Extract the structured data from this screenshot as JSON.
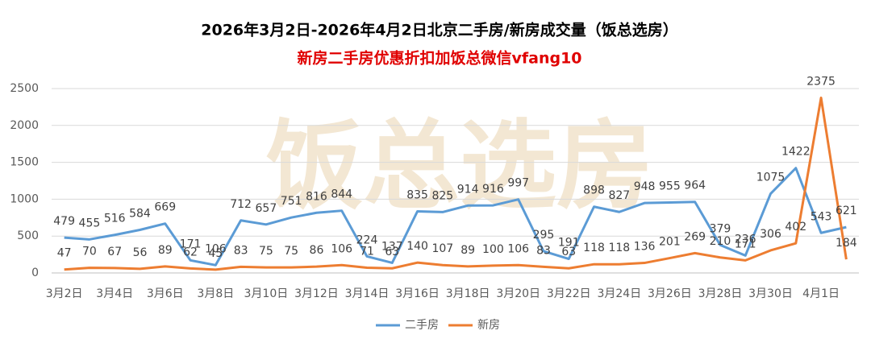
{
  "chart_data": {
    "type": "line",
    "title": "2026年3月2日-2026年4月2日北京二手房/新房成交量（饭总选房）",
    "subtitle": "新房二手房优惠折扣加饭总微信vfang10",
    "watermark": "饭总选房",
    "categories": [
      "3月2日",
      null,
      "3月4日",
      null,
      "3月6日",
      null,
      "3月8日",
      null,
      "3月10日",
      null,
      "3月12日",
      null,
      "3月14日",
      null,
      "3月16日",
      null,
      "3月18日",
      null,
      "3月20日",
      null,
      "3月22日",
      null,
      "3月24日",
      null,
      "3月26日",
      null,
      "3月28日",
      null,
      "3月30日",
      null,
      "4月1日",
      null
    ],
    "series": [
      {
        "name": "二手房",
        "color": "#5b9bd5",
        "values": [
          479,
          455,
          516,
          584,
          669,
          171,
          106,
          712,
          657,
          751,
          816,
          844,
          224,
          137,
          835,
          825,
          914,
          916,
          997,
          295,
          191,
          898,
          827,
          948,
          955,
          964,
          379,
          236,
          1075,
          1422,
          543,
          621
        ]
      },
      {
        "name": "新房",
        "color": "#ed7d31",
        "values": [
          47,
          70,
          67,
          56,
          89,
          62,
          45,
          83,
          75,
          75,
          86,
          106,
          71,
          63,
          140,
          107,
          89,
          100,
          106,
          83,
          63,
          118,
          118,
          136,
          201,
          269,
          210,
          171,
          306,
          402,
          2375,
          184
        ]
      }
    ],
    "ylim": [
      0,
      2500
    ],
    "yticks": [
      0,
      500,
      1000,
      1500,
      2000,
      2500
    ],
    "grid": true,
    "legend": "bottom"
  }
}
